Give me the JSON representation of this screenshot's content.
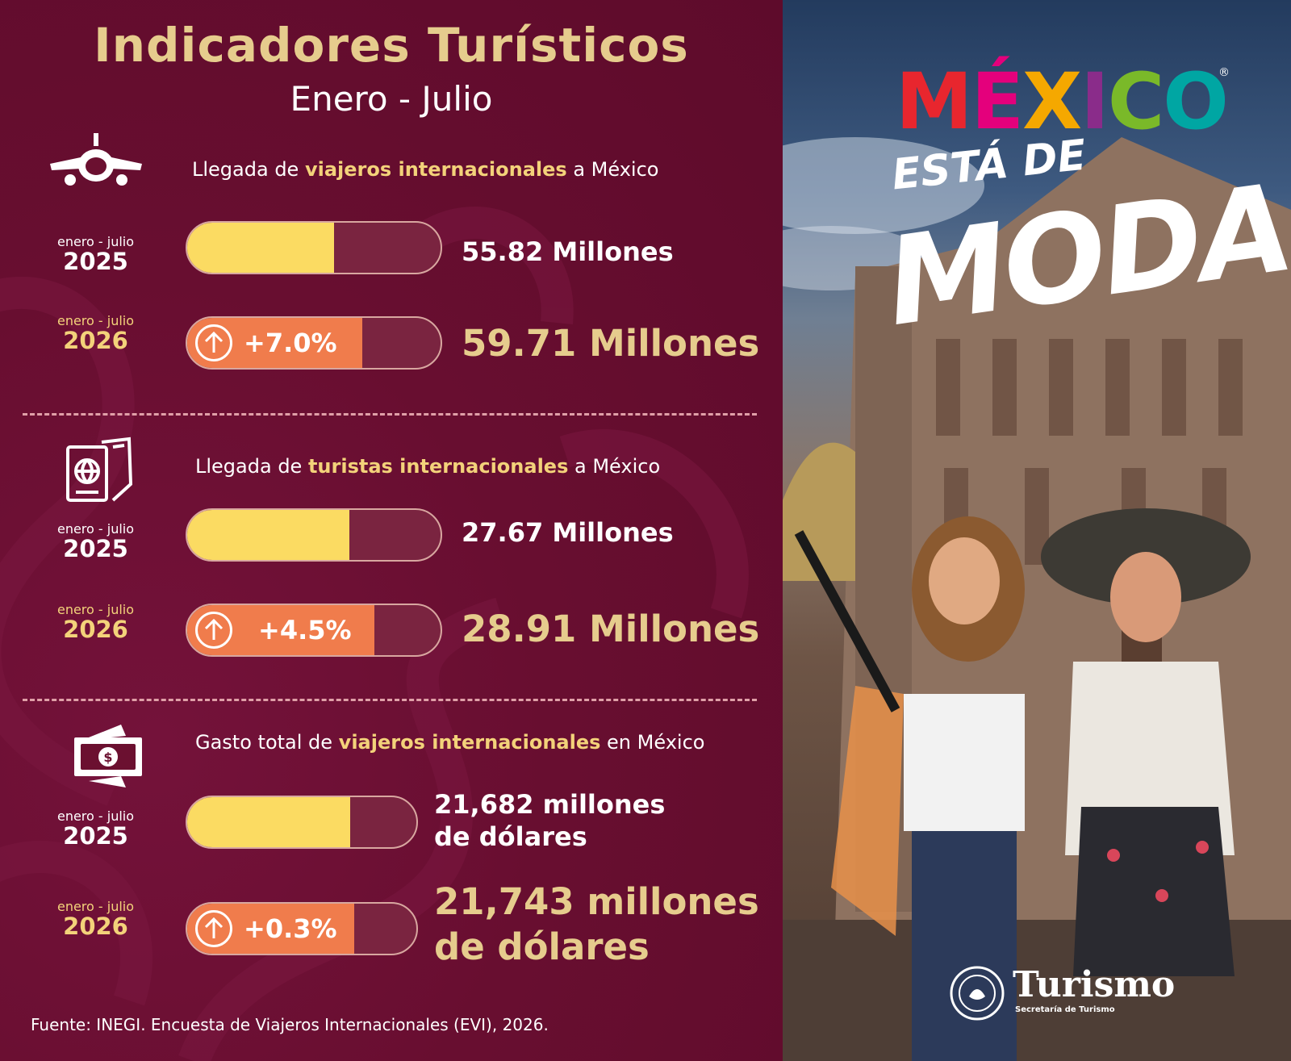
{
  "header": {
    "title": "Indicadores Turísticos",
    "subtitle": "Enero - Julio"
  },
  "sections": [
    {
      "icon": "airplane-icon",
      "heading_pre": "Llegada de ",
      "heading_hl": "viajeros internacionales",
      "heading_post": " a México",
      "rows": [
        {
          "period": "enero - julio",
          "year": "2025",
          "value": "55.82 Millones",
          "fill_pct": 58
        },
        {
          "period": "enero - julio",
          "year": "2026",
          "value": "59.71 Millones",
          "change": "+7.0%",
          "fill_pct": 69
        }
      ]
    },
    {
      "icon": "passport-ticket-icon",
      "heading_pre": "Llegada de ",
      "heading_hl": "turistas internacionales",
      "heading_post": " a México",
      "rows": [
        {
          "period": "enero - julio",
          "year": "2025",
          "value": "27.67 Millones",
          "fill_pct": 64
        },
        {
          "period": "enero - julio",
          "year": "2026",
          "value": "28.91 Millones",
          "change": "+4.5%",
          "fill_pct": 74
        }
      ]
    },
    {
      "icon": "money-bill-icon",
      "heading_pre": "Gasto total de ",
      "heading_hl": "viajeros internacionales",
      "heading_post": " en México",
      "rows": [
        {
          "period": "enero - julio",
          "year": "2025",
          "value_line1": "21,682 millones",
          "value_line2": "de dólares",
          "fill_pct": 71
        },
        {
          "period": "enero - julio",
          "year": "2026",
          "value_line1": "21,743 millones",
          "value_line2": "de dólares",
          "change": "+0.3%",
          "fill_pct": 73
        }
      ]
    }
  ],
  "footer": {
    "source": "Fuente: INEGI. Encuesta de Viajeros Internacionales (EVI), 2026."
  },
  "brand": {
    "logo_letters": [
      "M",
      "É",
      "X",
      "I",
      "C",
      "O"
    ],
    "logo_colors": [
      "#e8262e",
      "#e4007c",
      "#f5a800",
      "#8a2c8a",
      "#7ab929",
      "#00a6a3"
    ],
    "registered": "®",
    "tagline_top": "ESTÁ DE",
    "tagline_main": "MODA",
    "org_name": "Turismo",
    "org_sub": "Secretaría de Turismo"
  },
  "colors": {
    "background": "#6b1030",
    "gold": "#e6cc8d",
    "highlight": "#f3d27a",
    "bar_2025": "#fbdb62",
    "bar_2026": "#f07c4c",
    "bar_track": "#7a2440"
  }
}
